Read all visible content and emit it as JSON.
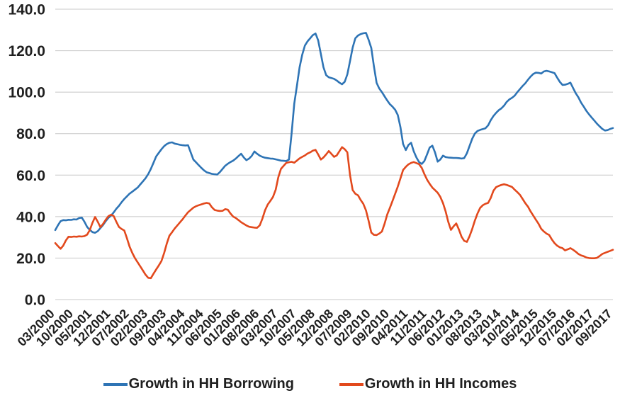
{
  "chart_data": {
    "type": "line",
    "x_unit": "month (monthly series, index 0 = 03/2000)",
    "x_month_count": 211,
    "months_per_tick": 7,
    "x_tick_labels": [
      "03/2000",
      "10/2000",
      "05/2001",
      "12/2001",
      "07/2002",
      "02/2003",
      "09/2003",
      "04/2004",
      "11/2004",
      "06/2005",
      "01/2006",
      "08/2006",
      "03/2007",
      "10/2007",
      "05/2008",
      "12/2008",
      "07/2009",
      "02/2010",
      "09/2010",
      "04/2011",
      "11/2011",
      "06/2012",
      "01/2013",
      "08/2013",
      "03/2014",
      "10/2014",
      "05/2015",
      "12/2015",
      "07/2016",
      "02/2017",
      "09/2017"
    ],
    "ylim": [
      0,
      140
    ],
    "yticks": [
      0,
      20,
      40,
      60,
      80,
      100,
      120,
      140
    ],
    "y_tick_labels": [
      "0.0",
      "20.0",
      "40.0",
      "60.0",
      "80.0",
      "100.0",
      "120.0",
      "140.0"
    ],
    "grid": "horizontal-only",
    "gridline_color": "#c8c8c8",
    "text_color": "#1f1f1f",
    "legend_position": "bottom-center",
    "series": [
      {
        "name": "Growth in HH Borrowing",
        "color": "#2e74b5",
        "values": [
          33.5,
          35.8,
          37.8,
          38.3,
          38.2,
          38.5,
          38.4,
          38.7,
          38.6,
          39.3,
          39.5,
          37.5,
          35.0,
          33.6,
          32.5,
          32.2,
          33.0,
          34.5,
          36.0,
          37.8,
          39.4,
          40.5,
          42.0,
          43.8,
          45.2,
          47.0,
          48.5,
          49.8,
          51.1,
          52.0,
          53.0,
          54.0,
          55.5,
          57.0,
          58.5,
          60.5,
          63.0,
          66.0,
          69.0,
          70.8,
          72.5,
          74.0,
          75.0,
          75.6,
          75.8,
          75.2,
          74.9,
          74.6,
          74.4,
          74.3,
          74.4,
          71.0,
          67.5,
          66.2,
          64.8,
          63.5,
          62.3,
          61.4,
          61.0,
          60.6,
          60.4,
          60.3,
          61.5,
          63.0,
          64.5,
          65.5,
          66.3,
          67.0,
          68.0,
          69.2,
          70.3,
          68.5,
          67.2,
          68.0,
          69.3,
          71.4,
          70.3,
          69.4,
          68.8,
          68.4,
          68.2,
          68.0,
          67.9,
          67.6,
          67.3,
          67.0,
          66.9,
          66.8,
          67.5,
          80.0,
          94.5,
          103.0,
          112.0,
          118.0,
          122.5,
          124.5,
          126.0,
          127.5,
          128.3,
          125.0,
          118.5,
          112.0,
          108.2,
          107.2,
          106.8,
          106.4,
          105.6,
          104.6,
          103.8,
          105.0,
          108.6,
          115.0,
          121.5,
          126.0,
          127.3,
          128.0,
          128.4,
          128.6,
          125.3,
          121.3,
          112.5,
          104.5,
          101.8,
          100.0,
          98.0,
          96.0,
          94.2,
          93.0,
          91.5,
          89.0,
          83.0,
          75.0,
          72.1,
          74.5,
          75.6,
          71.5,
          68.5,
          66.3,
          65.4,
          66.8,
          70.0,
          73.3,
          74.2,
          71.0,
          66.5,
          67.5,
          69.4,
          68.7,
          68.5,
          68.4,
          68.3,
          68.3,
          68.2,
          68.0,
          68.2,
          70.5,
          74.0,
          77.5,
          80.0,
          81.3,
          81.8,
          82.2,
          82.6,
          84.0,
          86.5,
          88.5,
          90.0,
          91.3,
          92.2,
          93.5,
          95.3,
          96.5,
          97.3,
          98.3,
          100.0,
          101.5,
          103.0,
          104.3,
          106.0,
          107.5,
          108.8,
          109.4,
          109.3,
          109.0,
          110.0,
          110.3,
          110.0,
          109.6,
          109.2,
          107.0,
          105.0,
          103.5,
          103.6,
          104.0,
          104.6,
          102.0,
          99.5,
          97.5,
          95.0,
          93.0,
          91.0,
          89.3,
          87.8,
          86.3,
          84.8,
          83.5,
          82.3,
          81.5,
          81.7,
          82.3,
          82.7
        ]
      },
      {
        "name": "Growth in HH Incomes",
        "color": "#e2491d",
        "values": [
          27.2,
          25.8,
          24.5,
          26.0,
          28.5,
          30.3,
          30.2,
          30.4,
          30.3,
          30.5,
          30.4,
          30.6,
          31.3,
          33.5,
          37.0,
          39.8,
          37.5,
          34.9,
          36.5,
          38.5,
          40.2,
          40.9,
          40.3,
          37.5,
          35.0,
          34.0,
          33.3,
          29.5,
          25.5,
          22.5,
          20.0,
          18.0,
          16.0,
          14.0,
          12.0,
          10.5,
          10.3,
          12.5,
          14.5,
          16.5,
          18.6,
          22.5,
          27.0,
          30.8,
          32.5,
          34.3,
          35.8,
          37.3,
          38.8,
          40.5,
          42.1,
          43.2,
          44.3,
          45.0,
          45.5,
          45.9,
          46.3,
          46.6,
          46.3,
          44.5,
          43.2,
          42.9,
          42.7,
          42.8,
          43.6,
          43.3,
          41.5,
          40.0,
          39.3,
          38.3,
          37.3,
          36.5,
          35.7,
          35.1,
          34.9,
          34.7,
          34.6,
          35.8,
          39.0,
          43.1,
          45.8,
          47.6,
          49.5,
          53.0,
          59.0,
          63.0,
          64.5,
          65.9,
          66.2,
          66.4,
          66.0,
          67.0,
          68.1,
          68.8,
          69.5,
          70.4,
          71.0,
          71.8,
          72.2,
          70.0,
          67.5,
          68.5,
          70.0,
          71.6,
          70.2,
          68.8,
          69.5,
          71.5,
          73.5,
          72.5,
          71.0,
          60.0,
          52.8,
          51.0,
          50.3,
          48.0,
          46.2,
          43.0,
          38.0,
          32.3,
          31.2,
          31.1,
          31.8,
          32.8,
          36.5,
          41.0,
          44.2,
          47.5,
          51.0,
          54.5,
          58.5,
          62.5,
          64.0,
          65.2,
          65.9,
          66.3,
          65.8,
          65.3,
          63.5,
          60.5,
          57.8,
          55.8,
          54.0,
          52.8,
          51.5,
          49.5,
          46.5,
          42.5,
          37.5,
          33.6,
          35.3,
          36.7,
          33.8,
          30.3,
          28.3,
          27.8,
          30.5,
          34.0,
          38.0,
          41.5,
          44.2,
          45.5,
          46.2,
          46.6,
          49.0,
          52.5,
          54.2,
          54.8,
          55.3,
          55.6,
          55.3,
          54.8,
          54.3,
          53.0,
          51.8,
          50.5,
          48.5,
          46.5,
          44.8,
          42.5,
          40.5,
          38.5,
          36.5,
          34.1,
          32.8,
          31.8,
          31.1,
          29.0,
          27.2,
          26.0,
          25.2,
          24.8,
          23.7,
          24.2,
          24.8,
          24.0,
          23.1,
          22.0,
          21.3,
          20.9,
          20.3,
          20.0,
          19.9,
          19.9,
          20.1,
          21.0,
          22.0,
          22.5,
          23.0,
          23.5,
          24.0
        ]
      }
    ]
  },
  "legend": {
    "borrowing_label": "Growth in HH Borrowing",
    "incomes_label": "Growth in HH Incomes"
  }
}
